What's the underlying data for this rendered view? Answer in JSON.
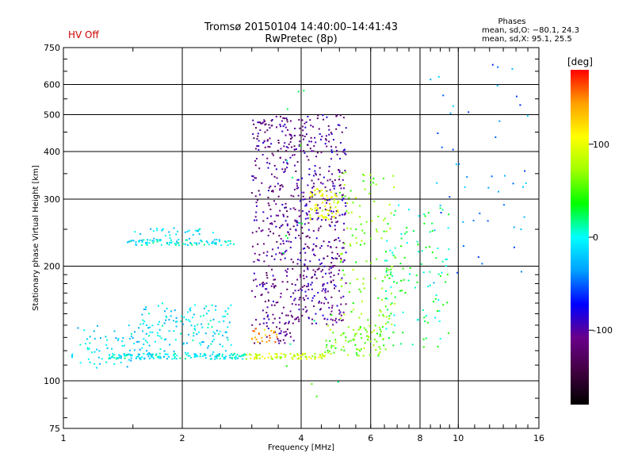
{
  "header": {
    "status": "HV Off",
    "title_line1": "Tromsø 20150104 14:40:00–14:41:43",
    "title_line2": "RwPretec (8p)",
    "phases_title": "Phases",
    "phases_o": "mean, sd,O: −80.1, 24.3",
    "phases_x": "mean, sd,X:  95.1, 25.5"
  },
  "colors": {
    "status": "#cc0000",
    "axis": "#000000",
    "grid": "#000000"
  },
  "chart_data": {
    "type": "scatter",
    "title": "Tromsø 20150104 14:40:00–14:41:43",
    "subtitle": "RwPretec (8p)",
    "xlabel": "Frequency [MHz]",
    "ylabel": "Stationary phase Virtual Height [km]",
    "x_scale": "log",
    "y_scale": "log",
    "xlim": [
      1,
      16
    ],
    "ylim": [
      75,
      750
    ],
    "x_ticks": [
      1,
      2,
      4,
      6,
      8,
      10,
      16
    ],
    "y_ticks": [
      75,
      100,
      200,
      300,
      400,
      500,
      600,
      750
    ],
    "x_grid": [
      2,
      4,
      6,
      8,
      10
    ],
    "y_grid": [
      100,
      200,
      300,
      400,
      500,
      600
    ],
    "grid": true,
    "colorbar": {
      "label": "[deg]",
      "range": [
        -180,
        180
      ],
      "ticks": [
        100,
        0,
        -100
      ],
      "colormap": [
        "#000000",
        "#400040",
        "#6a008a",
        "#0000ff",
        "#00a0ff",
        "#00ffff",
        "#00ff00",
        "#a0ff00",
        "#ffff00",
        "#ffa000",
        "#ff0000"
      ]
    },
    "series": [
      {
        "x_range": [
          1.05,
          1.6
        ],
        "y_range": [
          108,
          140
        ],
        "phase": -15,
        "count": 70
      },
      {
        "x_range": [
          1.3,
          2.9
        ],
        "y_range": [
          114,
          118
        ],
        "phase": -5,
        "count": 150
      },
      {
        "x_range": [
          1.55,
          2.7
        ],
        "y_range": [
          117,
          160
        ],
        "phase": -10,
        "count": 150
      },
      {
        "x_range": [
          1.45,
          2.7
        ],
        "y_range": [
          227,
          235
        ],
        "phase": -5,
        "count": 90
      },
      {
        "x_range": [
          1.5,
          2.4
        ],
        "y_range": [
          236,
          252
        ],
        "phase": -15,
        "count": 30
      },
      {
        "x_range": [
          2.9,
          4.6
        ],
        "y_range": [
          114,
          118
        ],
        "phase": 90,
        "count": 80
      },
      {
        "x_range": [
          4.6,
          6.6
        ],
        "y_range": [
          116,
          140
        ],
        "phase": 60,
        "count": 90
      },
      {
        "x_range": [
          3.0,
          3.9
        ],
        "y_range": [
          125,
          500
        ],
        "phase": -110,
        "count": 360
      },
      {
        "x_range": [
          3.9,
          5.2
        ],
        "y_range": [
          140,
          500
        ],
        "phase": -105,
        "count": 420
      },
      {
        "x_range": [
          4.2,
          5.0
        ],
        "y_range": [
          265,
          320
        ],
        "phase": 100,
        "count": 70
      },
      {
        "x_range": [
          5.0,
          6.9
        ],
        "y_range": [
          140,
          360
        ],
        "phase": 60,
        "count": 120
      },
      {
        "x_range": [
          3.0,
          3.5
        ],
        "y_range": [
          126,
          138
        ],
        "phase": 140,
        "count": 25
      },
      {
        "x_range": [
          6.5,
          9.5
        ],
        "y_range": [
          120,
          300
        ],
        "phase": 20,
        "count": 120
      },
      {
        "x_range": [
          8.5,
          15.0
        ],
        "y_range": [
          180,
          680
        ],
        "phase": -40,
        "count": 50
      },
      {
        "x_range": [
          3.6,
          5.0
        ],
        "y_range": [
          90,
          620
        ],
        "phase": 30,
        "count": 18
      }
    ]
  }
}
